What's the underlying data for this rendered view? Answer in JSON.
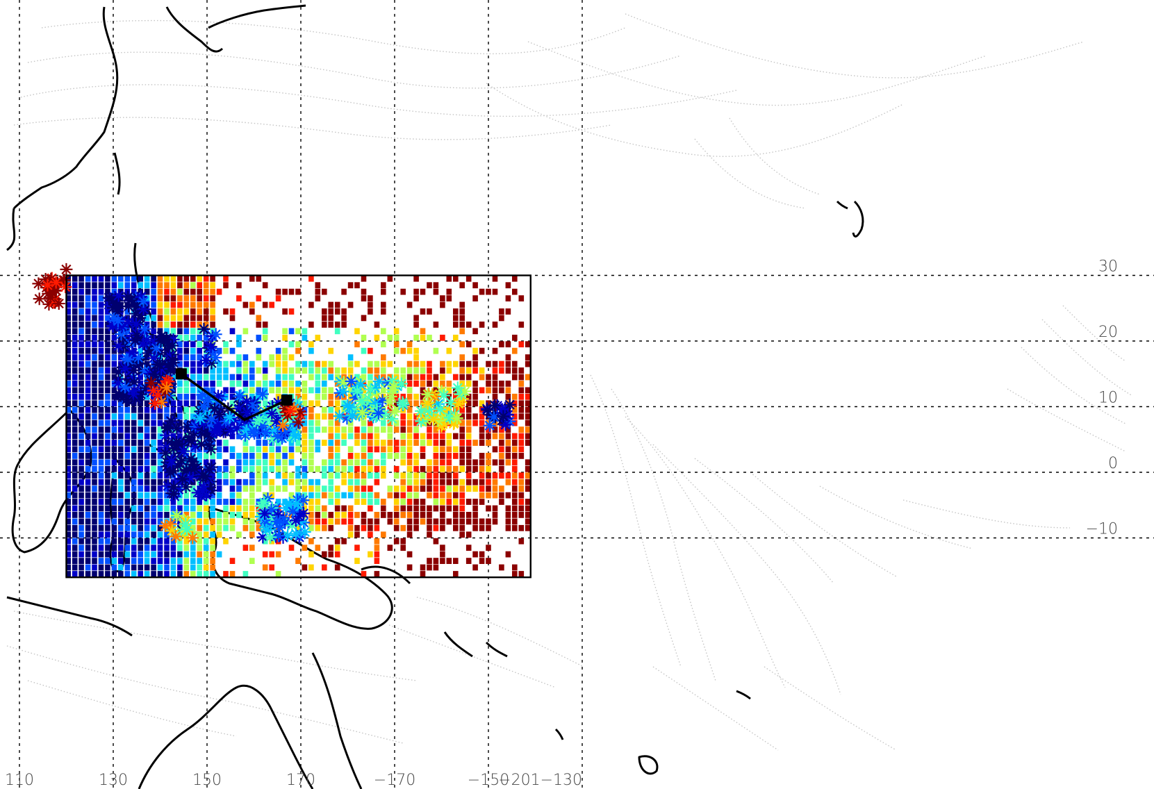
{
  "map": {
    "projection": "cylindrical",
    "lon_range": [
      110,
      200
    ],
    "lat_range": [
      -20,
      35
    ],
    "grid": "dotted",
    "box": {
      "lon": [
        120,
        219
      ],
      "lat": [
        -16,
        30
      ]
    },
    "x_tick_labels": [
      "110",
      "130",
      "150",
      "170",
      "−170",
      "−150",
      "−201−130"
    ],
    "x_tick_lons": [
      110,
      130,
      150,
      170,
      190,
      210,
      230
    ],
    "y_tick_labels": [
      "30",
      "20",
      "10",
      "0",
      "−10"
    ],
    "y_tick_lats": [
      30,
      20,
      10,
      0,
      -10
    ],
    "colors": {
      "background": "#ffffff",
      "coast": "#000000",
      "grid": "#000000",
      "streamlines": "#c0c0c0",
      "palette": [
        "#00006f",
        "#0000c8",
        "#0050ff",
        "#00bfff",
        "#40ffc0",
        "#b0ff50",
        "#ffd400",
        "#ff7a00",
        "#ff1a00",
        "#8b0000"
      ]
    },
    "track": [
      [
        144.5,
        15
      ],
      [
        158,
        8
      ],
      [
        167,
        11
      ]
    ],
    "legend": "none"
  }
}
